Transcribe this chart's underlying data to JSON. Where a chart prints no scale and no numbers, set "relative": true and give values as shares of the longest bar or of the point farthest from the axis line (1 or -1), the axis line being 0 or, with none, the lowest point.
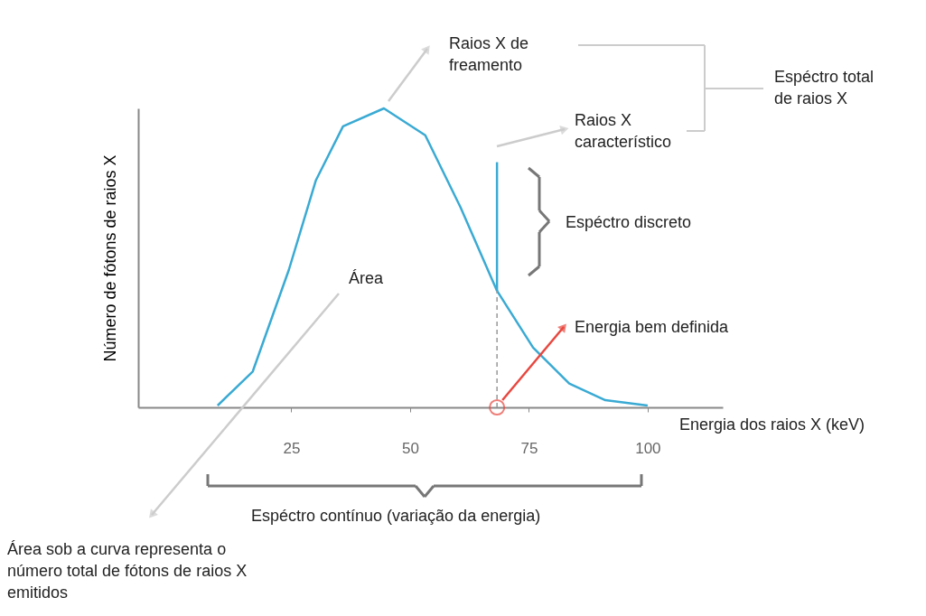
{
  "chart_data": {
    "type": "line",
    "relative": true,
    "xlabel": "Energia dos raios X (keV)",
    "ylabel": "Número de fótons de raios X",
    "xlim": [
      -7.2,
      115.8
    ],
    "xticks": [
      25,
      50,
      75,
      100
    ],
    "grid": false,
    "series": [
      {
        "color": "#3aaad3",
        "x": [
          9.5,
          16.9,
          24.5,
          30.2,
          35.9,
          44.5,
          53.2,
          60.6,
          68.3,
          75.9,
          83.5,
          91.1,
          100
        ],
        "values": [
          0.006,
          0.12,
          0.46,
          0.76,
          0.94,
          1.0,
          0.91,
          0.67,
          0.39,
          0.2,
          0.08,
          0.024,
          0.006
        ]
      },
      {
        "color": "#3aaad3",
        "x": [
          68.3,
          68.3
        ],
        "values": [
          0.39,
          0.82
        ]
      },
      {
        "color": "#999999",
        "line_style": "dashed",
        "x": [
          68.3,
          68.3
        ],
        "values": [
          0,
          0.39
        ]
      }
    ],
    "annotations": [
      "Raios X de\nfreamento",
      "Raios X\ncaracterístico",
      "Espéctro total\nde raios X",
      "Espéctro discreto",
      "Área",
      "Energia bem definida",
      "Espéctro contínuo (variação da energia)",
      "Área sob a curva representa o\nnúmero total de fótons de raios X\nemitidos"
    ]
  }
}
